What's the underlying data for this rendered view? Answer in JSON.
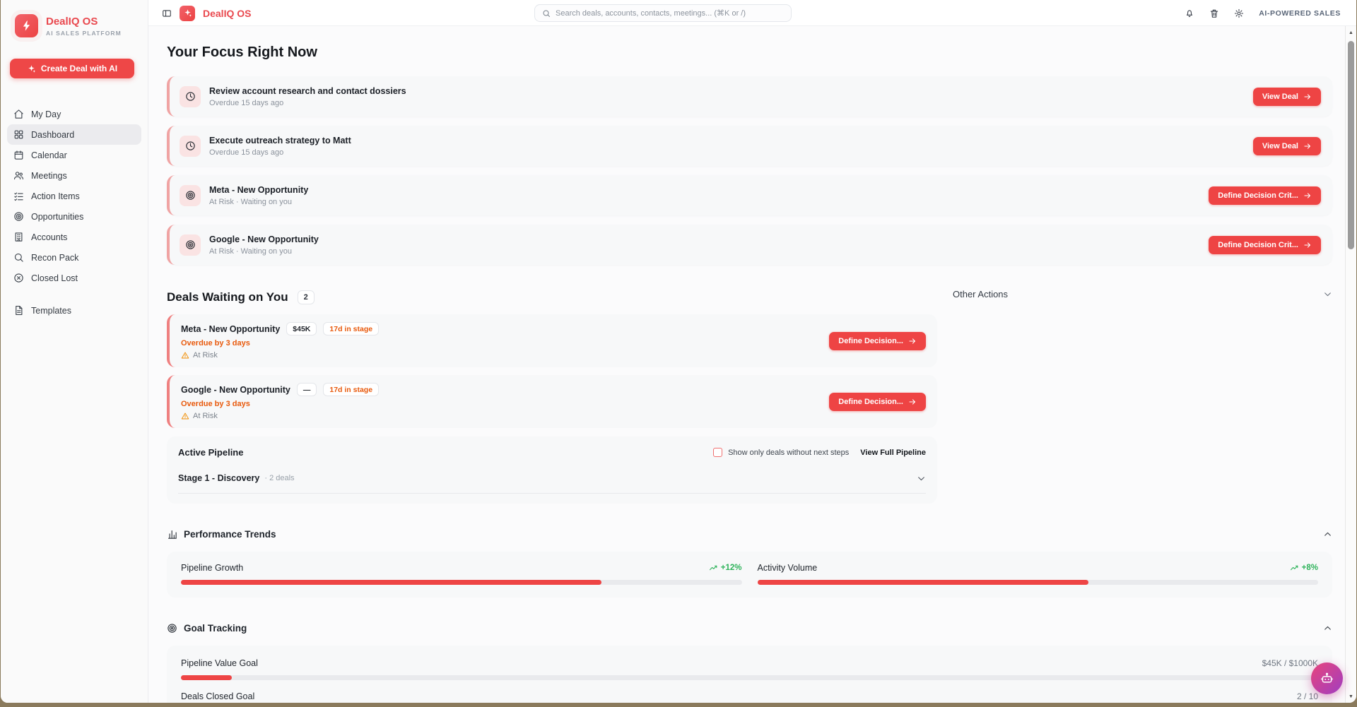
{
  "brand": {
    "name": "DealIQ OS",
    "tagline": "AI SALES PLATFORM"
  },
  "topbar": {
    "search_placeholder": "Search deals, accounts, contacts, meetings... (⌘K or /)",
    "right_label": "AI-POWERED SALES"
  },
  "sidebar": {
    "create_button": "Create Deal with AI",
    "items": [
      {
        "label": "My Day"
      },
      {
        "label": "Dashboard"
      },
      {
        "label": "Calendar"
      },
      {
        "label": "Meetings"
      },
      {
        "label": "Action Items"
      },
      {
        "label": "Opportunities"
      },
      {
        "label": "Accounts"
      },
      {
        "label": "Recon Pack"
      },
      {
        "label": "Closed Lost"
      }
    ],
    "templates_label": "Templates"
  },
  "focus": {
    "title": "Your Focus Right Now",
    "cards": [
      {
        "title": "Review account research and contact dossiers",
        "subtitle": "Overdue 15 days ago",
        "action": "View Deal"
      },
      {
        "title": "Execute outreach strategy to Matt",
        "subtitle": "Overdue 15 days ago",
        "action": "View Deal"
      },
      {
        "title": "Meta - New Opportunity",
        "subtitle": "At Risk · Waiting on you",
        "action": "Define Decision Crit..."
      },
      {
        "title": "Google - New Opportunity",
        "subtitle": "At Risk · Waiting on you",
        "action": "Define Decision Crit..."
      }
    ]
  },
  "deals": {
    "title": "Deals Waiting on You",
    "count": "2",
    "cards": [
      {
        "name": "Meta - New Opportunity",
        "value": "$45K",
        "stage": "17d in stage",
        "overdue": "Overdue by 3 days",
        "risk": "At Risk",
        "action": "Define Decision..."
      },
      {
        "name": "Google - New Opportunity",
        "value": "—",
        "stage": "17d in stage",
        "overdue": "Overdue by 3 days",
        "risk": "At Risk",
        "action": "Define Decision..."
      }
    ]
  },
  "other_actions": {
    "title": "Other Actions"
  },
  "pipeline": {
    "title": "Active Pipeline",
    "filter_label": "Show only deals without next steps",
    "filter_checked": false,
    "link": "View Full Pipeline",
    "stage": "Stage 1 - Discovery",
    "stage_meta": "· 2 deals"
  },
  "performance": {
    "title": "Performance Trends",
    "metrics": [
      {
        "label": "Pipeline Growth",
        "delta": "+12%",
        "percent": 75
      },
      {
        "label": "Activity Volume",
        "delta": "+8%",
        "percent": 59
      }
    ]
  },
  "goals": {
    "title": "Goal Tracking",
    "items": [
      {
        "label": "Pipeline Value Goal",
        "value": "$45K / $1000K",
        "percent": 4.5
      },
      {
        "label": "Deals Closed Goal",
        "value": "2 / 10",
        "percent": 20
      }
    ]
  },
  "colors": {
    "accent": "#ee4747",
    "orange": "#e8590c",
    "green": "#2fb35b",
    "card_bg": "#f7f8f9"
  }
}
